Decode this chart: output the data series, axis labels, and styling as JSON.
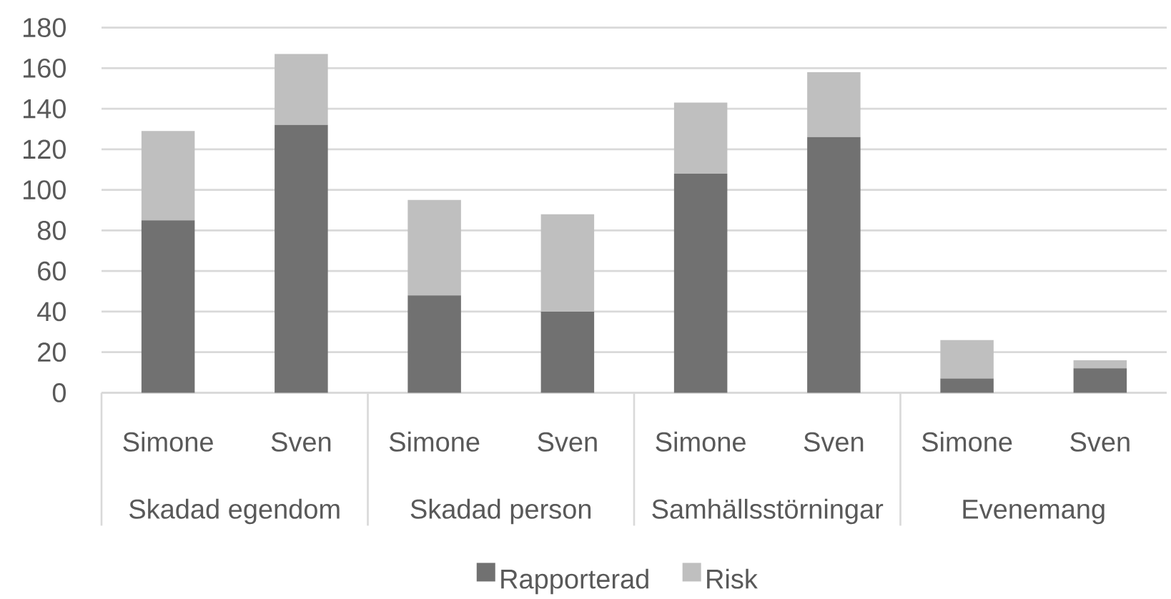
{
  "chart_data": {
    "type": "bar",
    "stacked": true,
    "categories": [
      "Simone",
      "Sven",
      "Simone",
      "Sven",
      "Simone",
      "Sven",
      "Simone",
      "Sven"
    ],
    "series": [
      {
        "name": "Rapporterad",
        "color": "#717171",
        "values": [
          85,
          132,
          48,
          40,
          108,
          126,
          7,
          12
        ]
      },
      {
        "name": "Risk",
        "color": "#bfbfbf",
        "values": [
          44,
          35,
          47,
          48,
          35,
          32,
          19,
          4
        ]
      }
    ],
    "ylim": [
      0,
      180
    ],
    "yticks": [
      0,
      20,
      40,
      60,
      80,
      100,
      120,
      140,
      160,
      180
    ],
    "grid": "y",
    "legend": "bottom",
    "annotations": [
      "Skadad egendom",
      "Skadad person",
      "Samhällsstörningar",
      "Evenemang"
    ]
  }
}
